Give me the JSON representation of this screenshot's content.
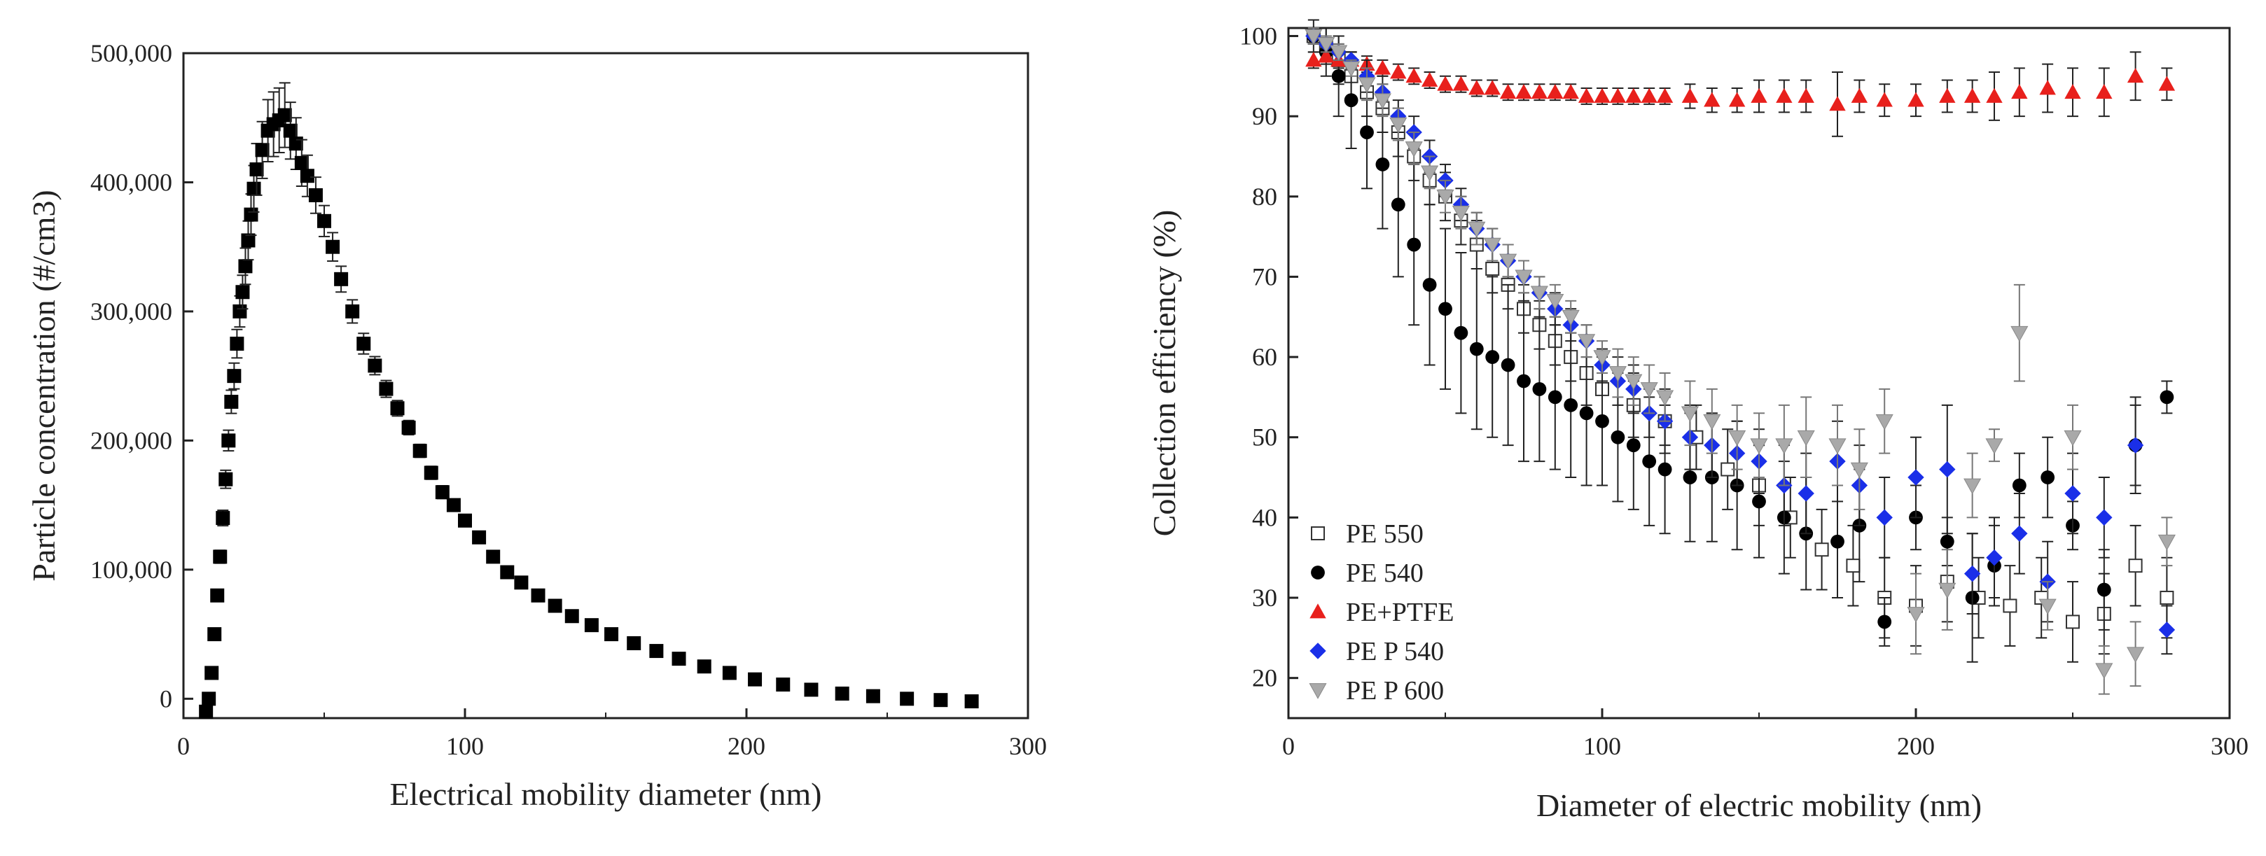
{
  "chart_data": [
    {
      "type": "scatter",
      "xlabel": "Electrical mobility diameter (nm)",
      "ylabel": "Particle concentration (#/cm3)",
      "xlim": [
        0,
        300
      ],
      "ylim": [
        -15000,
        500000
      ],
      "xticks": [
        0,
        100,
        200,
        300
      ],
      "yticks": [
        0,
        100000,
        200000,
        300000,
        400000,
        500000
      ],
      "xtick_labels": [
        "0",
        "100",
        "200",
        "300"
      ],
      "ytick_labels": [
        "0",
        "100,000",
        "200,000",
        "300,000",
        "400,000",
        "500,000"
      ],
      "grid": false,
      "legend": "none",
      "series": [
        {
          "name": "Particle concentration",
          "marker": "square",
          "color": "#000000",
          "x": [
            8,
            9,
            10,
            11,
            12,
            13,
            14,
            15,
            16,
            17,
            18,
            19,
            20,
            21,
            22,
            23,
            24,
            25,
            26,
            28,
            30,
            32,
            34,
            36,
            38,
            40,
            42,
            44,
            47,
            50,
            53,
            56,
            60,
            64,
            68,
            72,
            76,
            80,
            84,
            88,
            92,
            96,
            100,
            105,
            110,
            115,
            120,
            126,
            132,
            138,
            145,
            152,
            160,
            168,
            176,
            185,
            194,
            203,
            213,
            223,
            234,
            245,
            257,
            269,
            280
          ],
          "y": [
            -10000,
            0,
            20000,
            50000,
            80000,
            110000,
            140000,
            170000,
            200000,
            230000,
            250000,
            275000,
            300000,
            315000,
            335000,
            355000,
            375000,
            395000,
            410000,
            425000,
            440000,
            445000,
            448000,
            452000,
            440000,
            430000,
            415000,
            405000,
            390000,
            370000,
            350000,
            325000,
            300000,
            275000,
            258000,
            240000,
            225000,
            210000,
            192000,
            175000,
            160000,
            150000,
            138000,
            125000,
            110000,
            98000,
            90000,
            80000,
            72000,
            64000,
            57000,
            50000,
            43000,
            37000,
            31000,
            25000,
            20000,
            15000,
            11000,
            7000,
            4000,
            2000,
            0,
            -1000,
            -2000
          ],
          "error": [
            0,
            0,
            2000,
            3000,
            4000,
            5000,
            6000,
            7000,
            8000,
            9000,
            10000,
            11000,
            12000,
            13000,
            14000,
            15000,
            16000,
            18000,
            20000,
            22000,
            24000,
            25000,
            25000,
            25000,
            22000,
            20000,
            18000,
            16000,
            14000,
            12000,
            11000,
            10000,
            9000,
            8000,
            7000,
            6500,
            6000,
            5500,
            5000,
            5000,
            5000,
            4500,
            4500,
            4000,
            4000,
            3500,
            3500,
            3000,
            3000,
            3000,
            3000,
            3000,
            3000,
            3000,
            3000,
            3000,
            3000,
            3000,
            3000,
            3000,
            3000,
            3000,
            3000,
            3000,
            3000
          ]
        }
      ]
    },
    {
      "type": "scatter",
      "xlabel": "Diameter of electric mobility (nm)",
      "ylabel": "Collection efficiency (%)",
      "xlim": [
        0,
        300
      ],
      "ylim": [
        15,
        101
      ],
      "xticks": [
        0,
        100,
        200,
        300
      ],
      "yticks": [
        20,
        30,
        40,
        50,
        60,
        70,
        80,
        90,
        100
      ],
      "xtick_labels": [
        "0",
        "100",
        "200",
        "300"
      ],
      "ytick_labels": [
        "20",
        "30",
        "40",
        "50",
        "60",
        "70",
        "80",
        "90",
        "100"
      ],
      "grid": false,
      "legend": "bottom-left",
      "series": [
        {
          "name": "PE 550",
          "marker": "open-square",
          "color": "#000000",
          "x": [
            8,
            12,
            16,
            20,
            25,
            30,
            35,
            40,
            45,
            50,
            55,
            60,
            65,
            70,
            75,
            80,
            85,
            90,
            95,
            100,
            110,
            120,
            130,
            140,
            150,
            160,
            170,
            180,
            190,
            200,
            210,
            220,
            230,
            240,
            250,
            260,
            270,
            280
          ],
          "y": [
            100,
            99,
            97,
            95,
            93,
            91,
            88,
            85,
            82,
            80,
            77,
            74,
            71,
            69,
            66,
            64,
            62,
            60,
            58,
            56,
            54,
            52,
            50,
            46,
            44,
            40,
            36,
            34,
            30,
            29,
            32,
            30,
            29,
            30,
            27,
            28,
            34,
            30
          ],
          "error": [
            1,
            2,
            3,
            3,
            3,
            3,
            3,
            3,
            3,
            3,
            3,
            3,
            3,
            3,
            3,
            3,
            3,
            3,
            4,
            4,
            4,
            4,
            4,
            5,
            5,
            5,
            5,
            5,
            5,
            5,
            5,
            5,
            5,
            5,
            5,
            5,
            5,
            5
          ]
        },
        {
          "name": "PE 540",
          "marker": "filled-circle",
          "color": "#000000",
          "x": [
            8,
            12,
            16,
            20,
            25,
            30,
            35,
            40,
            45,
            50,
            55,
            60,
            65,
            70,
            75,
            80,
            85,
            90,
            95,
            100,
            105,
            110,
            115,
            120,
            128,
            135,
            143,
            150,
            158,
            165,
            175,
            182,
            190,
            200,
            210,
            218,
            225,
            233,
            242,
            250,
            260,
            270,
            280
          ],
          "y": [
            100,
            98,
            95,
            92,
            88,
            84,
            79,
            74,
            69,
            66,
            63,
            61,
            60,
            59,
            57,
            56,
            55,
            54,
            53,
            52,
            50,
            49,
            47,
            46,
            45,
            45,
            44,
            42,
            40,
            38,
            37,
            39,
            27,
            40,
            37,
            30,
            34,
            44,
            45,
            39,
            31,
            49,
            55
          ],
          "error": [
            2,
            3,
            5,
            6,
            7,
            8,
            9,
            10,
            10,
            10,
            10,
            10,
            10,
            10,
            10,
            9,
            9,
            9,
            9,
            8,
            8,
            8,
            8,
            8,
            8,
            8,
            8,
            7,
            7,
            7,
            7,
            7,
            3,
            4,
            3,
            8,
            5,
            4,
            5,
            3,
            5,
            5,
            2
          ]
        },
        {
          "name": "PE+PTFE",
          "marker": "filled-triangle-up",
          "color": "#e8201c",
          "x": [
            8,
            12,
            16,
            20,
            25,
            30,
            35,
            40,
            45,
            50,
            55,
            60,
            65,
            70,
            75,
            80,
            85,
            90,
            95,
            100,
            105,
            110,
            115,
            120,
            128,
            135,
            143,
            150,
            158,
            165,
            175,
            182,
            190,
            200,
            210,
            218,
            225,
            233,
            242,
            250,
            260,
            270,
            280
          ],
          "y": [
            97,
            97.5,
            97,
            97,
            96.5,
            96,
            95.5,
            95,
            94.5,
            94,
            94,
            93.5,
            93.5,
            93,
            93,
            93,
            93,
            93,
            92.5,
            92.5,
            92.5,
            92.5,
            92.5,
            92.5,
            92.5,
            92,
            92,
            92.5,
            92.5,
            92.5,
            91.5,
            92.5,
            92,
            92,
            92.5,
            92.5,
            92.5,
            93,
            93.5,
            93,
            93,
            95,
            94
          ],
          "error": [
            1,
            1,
            1,
            1,
            1,
            1,
            1,
            1,
            1,
            1,
            1,
            1,
            1,
            1,
            1,
            1,
            1,
            1,
            1,
            1,
            1,
            1,
            1,
            1,
            1.5,
            1.5,
            1.5,
            2,
            2,
            2,
            4,
            2,
            2,
            2,
            2,
            2,
            3,
            3,
            3,
            3,
            3,
            3,
            2
          ]
        },
        {
          "name": "PE P 540",
          "marker": "filled-diamond",
          "color": "#1a2fe8",
          "x": [
            8,
            12,
            16,
            20,
            25,
            30,
            35,
            40,
            45,
            50,
            55,
            60,
            65,
            70,
            75,
            80,
            85,
            90,
            95,
            100,
            105,
            110,
            115,
            120,
            128,
            135,
            143,
            150,
            158,
            165,
            175,
            182,
            190,
            200,
            210,
            218,
            225,
            233,
            242,
            250,
            260,
            270,
            280
          ],
          "y": [
            100,
            99,
            98,
            97,
            95,
            93,
            90,
            88,
            85,
            82,
            79,
            76,
            74,
            72,
            70,
            68,
            66,
            64,
            62,
            59,
            57,
            56,
            53,
            52,
            50,
            49,
            48,
            47,
            44,
            43,
            47,
            44,
            40,
            45,
            46,
            33,
            35,
            38,
            32,
            43,
            40,
            49,
            26
          ],
          "error": [
            1,
            1,
            1,
            1,
            2,
            2,
            2,
            2,
            2,
            2,
            2,
            2,
            2,
            2,
            2,
            2,
            2,
            2,
            2,
            2,
            3,
            3,
            3,
            3,
            4,
            4,
            4,
            4,
            5,
            5,
            5,
            5,
            5,
            5,
            8,
            5,
            5,
            5,
            5,
            5,
            5,
            6,
            3
          ]
        },
        {
          "name": "PE P 600",
          "marker": "filled-triangle-down",
          "color": "#a9a9a9",
          "x": [
            8,
            12,
            16,
            20,
            25,
            30,
            35,
            40,
            45,
            50,
            55,
            60,
            65,
            70,
            75,
            80,
            85,
            90,
            95,
            100,
            105,
            110,
            115,
            120,
            128,
            135,
            143,
            150,
            158,
            165,
            175,
            182,
            190,
            200,
            210,
            218,
            225,
            233,
            242,
            250,
            260,
            270,
            280
          ],
          "y": [
            100,
            99,
            98,
            96,
            94,
            92,
            89,
            86,
            83,
            80,
            78,
            76,
            74,
            72,
            70,
            68,
            67,
            65,
            62,
            60,
            58,
            57,
            56,
            55,
            53,
            52,
            50,
            49,
            49,
            50,
            49,
            46,
            52,
            28,
            31,
            44,
            49,
            63,
            29,
            50,
            21,
            23,
            37
          ],
          "error": [
            1,
            1,
            1,
            1,
            2,
            2,
            2,
            2,
            2,
            2,
            2,
            2,
            2,
            2,
            2,
            2,
            2,
            2,
            2,
            2,
            3,
            3,
            3,
            3,
            4,
            4,
            4,
            4,
            5,
            5,
            5,
            5,
            4,
            5,
            5,
            4,
            2,
            6,
            3,
            4,
            3,
            4,
            3
          ]
        }
      ],
      "legend_entries": [
        "PE 550",
        "PE 540",
        "PE+PTFE",
        "PE P 540",
        "PE P 600"
      ]
    }
  ]
}
